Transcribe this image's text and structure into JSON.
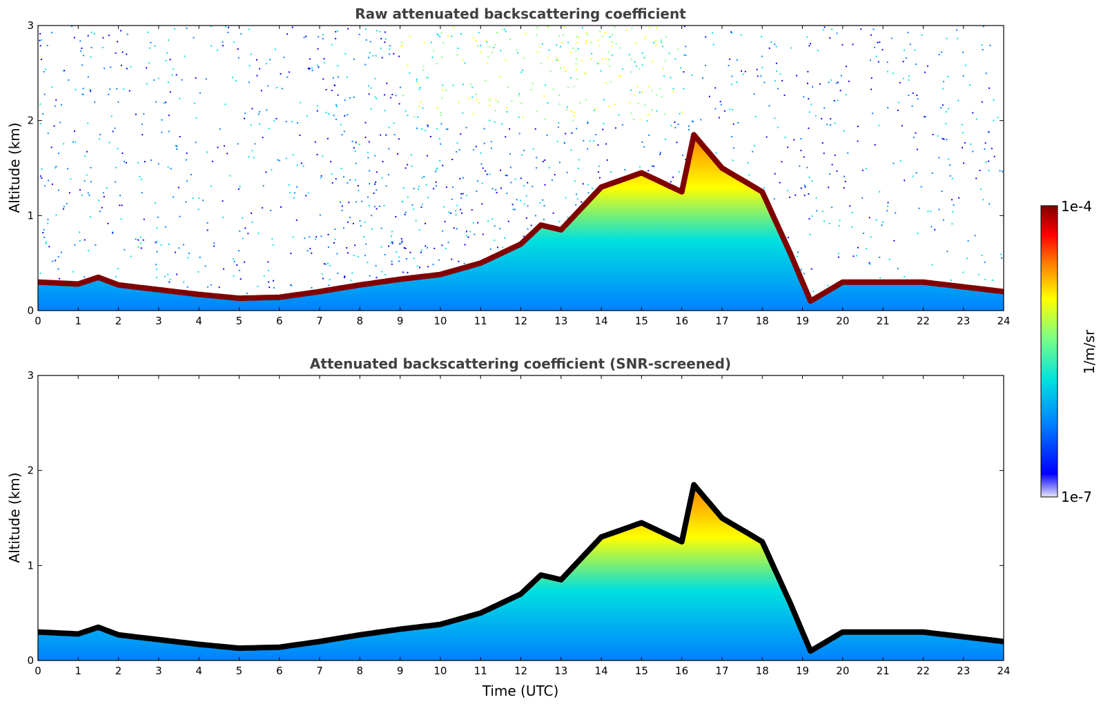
{
  "chart_data": [
    {
      "type": "heatmap",
      "title": "Raw attenuated backscattering coefficient",
      "xlabel": "",
      "ylabel": "Altitude (km)",
      "xlim": [
        0,
        24
      ],
      "ylim": [
        0,
        3
      ],
      "xticks": [
        "0",
        "1",
        "2",
        "3",
        "4",
        "5",
        "6",
        "7",
        "8",
        "9",
        "10",
        "11",
        "12",
        "13",
        "14",
        "15",
        "16",
        "17",
        "18",
        "19",
        "20",
        "21",
        "22",
        "23",
        "24"
      ],
      "yticks": [
        "0",
        "1",
        "2",
        "3"
      ],
      "boundary_layer_top_km": {
        "time_utc": [
          0,
          1,
          1.5,
          2,
          3,
          4,
          5,
          6,
          7,
          8,
          9,
          10,
          11,
          12,
          12.5,
          13,
          14,
          15,
          16,
          16.3,
          17,
          18,
          18.7,
          19.2,
          20,
          21,
          22,
          23,
          24
        ],
        "altitude_km": [
          0.3,
          0.28,
          0.35,
          0.27,
          0.22,
          0.17,
          0.13,
          0.14,
          0.2,
          0.27,
          0.33,
          0.38,
          0.5,
          0.7,
          0.9,
          0.85,
          1.3,
          1.45,
          1.25,
          1.85,
          1.5,
          1.25,
          0.6,
          0.1,
          0.3,
          0.3,
          0.3,
          0.25,
          0.2
        ]
      },
      "noise": "high"
    },
    {
      "type": "heatmap",
      "title": "Attenuated backscattering coefficient (SNR-screened)",
      "xlabel": "Time (UTC)",
      "ylabel": "Altitude (km)",
      "xlim": [
        0,
        24
      ],
      "ylim": [
        0,
        3
      ],
      "xticks": [
        "0",
        "1",
        "2",
        "3",
        "4",
        "5",
        "6",
        "7",
        "8",
        "9",
        "10",
        "11",
        "12",
        "13",
        "14",
        "15",
        "16",
        "17",
        "18",
        "19",
        "20",
        "21",
        "22",
        "23",
        "24"
      ],
      "yticks": [
        "0",
        "1",
        "2",
        "3"
      ],
      "boundary_layer_top_km": {
        "time_utc": [
          0,
          1,
          1.5,
          2,
          3,
          4,
          5,
          6,
          7,
          8,
          9,
          10,
          11,
          12,
          12.5,
          13,
          14,
          15,
          16,
          16.3,
          17,
          18,
          18.7,
          19.2,
          20,
          21,
          22,
          23,
          24
        ],
        "altitude_km": [
          0.3,
          0.28,
          0.35,
          0.27,
          0.22,
          0.17,
          0.13,
          0.14,
          0.2,
          0.27,
          0.33,
          0.38,
          0.5,
          0.7,
          0.9,
          0.85,
          1.3,
          1.45,
          1.25,
          1.85,
          1.5,
          1.25,
          0.6,
          0.1,
          0.3,
          0.3,
          0.3,
          0.25,
          0.2
        ]
      },
      "noise": "screened"
    }
  ],
  "colorbar": {
    "label": "1/m/sr",
    "max_label": "1e-4",
    "min_label": "1e-7",
    "scale": "log",
    "range": [
      1e-07,
      0.0001
    ],
    "colormap": [
      "#e6e6f5",
      "#0000ff",
      "#0080ff",
      "#00e0e0",
      "#80ff80",
      "#ffff00",
      "#ff8000",
      "#ff0000",
      "#800000"
    ]
  }
}
